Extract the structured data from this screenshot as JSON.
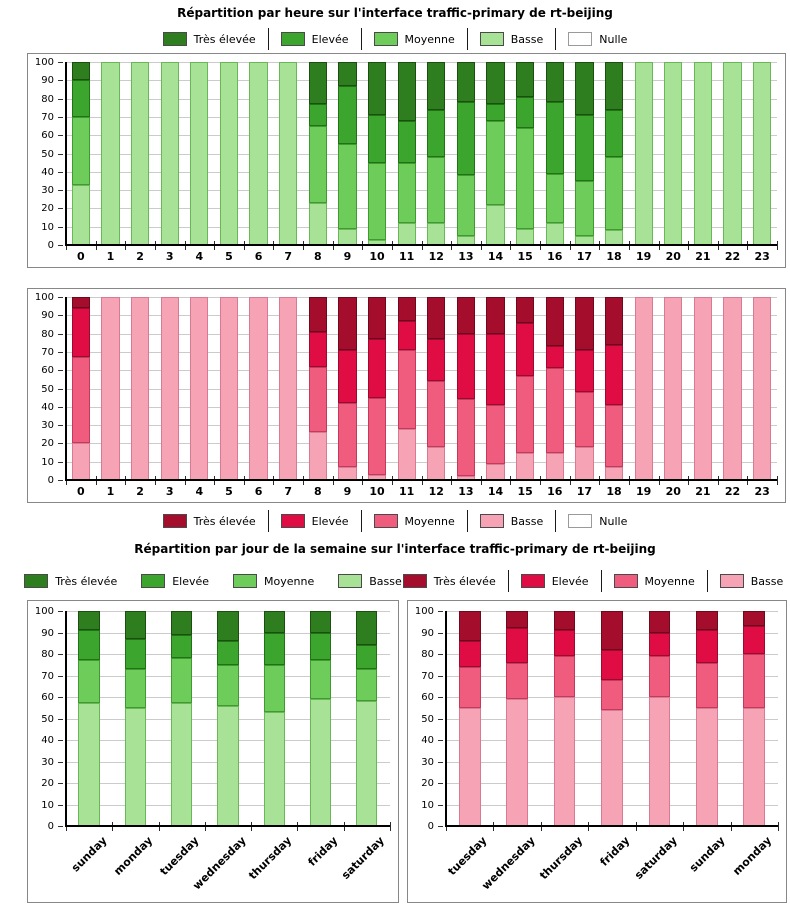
{
  "titles": {
    "hourly": "Répartition par heure sur l'interface traffic-primary de rt-beijing",
    "daily": "Répartition par jour de la semaine sur l'interface traffic-primary de rt-beijing"
  },
  "palette": {
    "green": {
      "tres_elevee": "#2e7d1e",
      "elevee": "#3ca52d",
      "moyenne": "#6ecd5a",
      "basse": "#a8e296",
      "nulle": "#ffffff"
    },
    "red": {
      "tres_elevee": "#a50d2d",
      "elevee": "#e00d45",
      "moyenne": "#f05c7e",
      "basse": "#f5a3b5",
      "nulle": "#ffffff"
    }
  },
  "legends": [
    {
      "id": "hourly-green",
      "entries": [
        {
          "label": "Très élevée",
          "color": "#2e7d1e"
        },
        {
          "label": "Elevée",
          "color": "#3ca52d"
        },
        {
          "label": "Moyenne",
          "color": "#6ecd5a"
        },
        {
          "label": "Basse",
          "color": "#a8e296"
        },
        {
          "label": "Nulle",
          "color": "#ffffff"
        }
      ]
    },
    {
      "id": "hourly-red",
      "entries": [
        {
          "label": "Très élevée",
          "color": "#a50d2d"
        },
        {
          "label": "Elevée",
          "color": "#e00d45"
        },
        {
          "label": "Moyenne",
          "color": "#f05c7e"
        },
        {
          "label": "Basse",
          "color": "#f5a3b5"
        },
        {
          "label": "Nulle",
          "color": "#ffffff"
        }
      ]
    },
    {
      "id": "daily-green",
      "entries": [
        {
          "label": "Très élevée",
          "color": "#2e7d1e"
        },
        {
          "label": "Elevée",
          "color": "#3ca52d"
        },
        {
          "label": "Moyenne",
          "color": "#6ecd5a"
        },
        {
          "label": "Basse",
          "color": "#a8e296"
        }
      ]
    },
    {
      "id": "daily-red",
      "entries": [
        {
          "label": "Très élevée",
          "color": "#a50d2d"
        },
        {
          "label": "Elevée",
          "color": "#e00d45"
        },
        {
          "label": "Moyenne",
          "color": "#f05c7e"
        },
        {
          "label": "Basse",
          "color": "#f5a3b5"
        }
      ]
    }
  ],
  "chart_data": [
    {
      "id": "hourly-green",
      "type": "bar",
      "stacked": true,
      "title": "Répartition par heure sur l'interface traffic-primary de rt-beijing",
      "ylim": [
        0,
        100
      ],
      "ytick_step": 10,
      "grid": true,
      "legend_position": "above",
      "categories": [
        "0",
        "1",
        "2",
        "3",
        "4",
        "5",
        "6",
        "7",
        "8",
        "9",
        "10",
        "11",
        "12",
        "13",
        "14",
        "15",
        "16",
        "17",
        "18",
        "19",
        "20",
        "21",
        "22",
        "23"
      ],
      "series": [
        {
          "name": "Basse",
          "color": "#a8e296",
          "edge": "#6ab757",
          "values": [
            33,
            100,
            100,
            100,
            100,
            100,
            100,
            100,
            23,
            9,
            3,
            12,
            12,
            5,
            22,
            9,
            12,
            5,
            8,
            100,
            100,
            100,
            100,
            100
          ]
        },
        {
          "name": "Moyenne",
          "color": "#6ecd5a",
          "edge": "#3f9a30",
          "values": [
            37,
            0,
            0,
            0,
            0,
            0,
            0,
            0,
            42,
            46,
            42,
            33,
            36,
            33,
            46,
            55,
            27,
            30,
            40,
            0,
            0,
            0,
            0,
            0
          ]
        },
        {
          "name": "Elevée",
          "color": "#3ca52d",
          "edge": "#1f7314",
          "values": [
            20,
            0,
            0,
            0,
            0,
            0,
            0,
            0,
            12,
            32,
            26,
            23,
            26,
            40,
            9,
            17,
            39,
            36,
            26,
            0,
            0,
            0,
            0,
            0
          ]
        },
        {
          "name": "Très élevée",
          "color": "#2e7d1e",
          "edge": "#1a4f10",
          "values": [
            10,
            0,
            0,
            0,
            0,
            0,
            0,
            0,
            23,
            13,
            29,
            32,
            26,
            22,
            23,
            19,
            22,
            29,
            26,
            0,
            0,
            0,
            0,
            0
          ]
        }
      ]
    },
    {
      "id": "hourly-red",
      "type": "bar",
      "stacked": true,
      "title": "Répartition par heure sur l'interface traffic-primary de rt-beijing",
      "ylim": [
        0,
        100
      ],
      "ytick_step": 10,
      "grid": true,
      "legend_position": "below",
      "categories": [
        "0",
        "1",
        "2",
        "3",
        "4",
        "5",
        "6",
        "7",
        "8",
        "9",
        "10",
        "11",
        "12",
        "13",
        "14",
        "15",
        "16",
        "17",
        "18",
        "19",
        "20",
        "21",
        "22",
        "23"
      ],
      "series": [
        {
          "name": "Basse",
          "color": "#f5a3b5",
          "edge": "#d87b92",
          "values": [
            20,
            100,
            100,
            100,
            100,
            100,
            100,
            100,
            26,
            7,
            3,
            28,
            18,
            2,
            9,
            15,
            15,
            18,
            7,
            100,
            100,
            100,
            100,
            100
          ]
        },
        {
          "name": "Moyenne",
          "color": "#f05c7e",
          "edge": "#c43a5c",
          "values": [
            47,
            0,
            0,
            0,
            0,
            0,
            0,
            0,
            36,
            35,
            42,
            43,
            36,
            42,
            32,
            42,
            46,
            30,
            34,
            0,
            0,
            0,
            0,
            0
          ]
        },
        {
          "name": "Elevée",
          "color": "#e00d45",
          "edge": "#9c0a30",
          "values": [
            27,
            0,
            0,
            0,
            0,
            0,
            0,
            0,
            19,
            29,
            32,
            16,
            23,
            36,
            39,
            29,
            12,
            23,
            33,
            0,
            0,
            0,
            0,
            0
          ]
        },
        {
          "name": "Très élevée",
          "color": "#a50d2d",
          "edge": "#6d081d",
          "values": [
            6,
            0,
            0,
            0,
            0,
            0,
            0,
            0,
            19,
            29,
            23,
            13,
            23,
            20,
            20,
            14,
            27,
            29,
            26,
            0,
            0,
            0,
            0,
            0
          ]
        }
      ]
    },
    {
      "id": "daily-green",
      "type": "bar",
      "stacked": true,
      "title": "Répartition par jour de la semaine sur l'interface traffic-primary de rt-beijing",
      "ylim": [
        0,
        100
      ],
      "ytick_step": 10,
      "grid": true,
      "legend_position": "above",
      "categories": [
        "sunday",
        "monday",
        "tuesday",
        "wednesday",
        "thursday",
        "friday",
        "saturday"
      ],
      "series": [
        {
          "name": "Basse",
          "color": "#a8e296",
          "edge": "#6ab757",
          "values": [
            57,
            55,
            57,
            56,
            53,
            59,
            58
          ]
        },
        {
          "name": "Moyenne",
          "color": "#6ecd5a",
          "edge": "#3f9a30",
          "values": [
            20,
            18,
            21,
            19,
            22,
            18,
            15
          ]
        },
        {
          "name": "Elevée",
          "color": "#3ca52d",
          "edge": "#1f7314",
          "values": [
            14,
            14,
            11,
            11,
            15,
            13,
            11
          ]
        },
        {
          "name": "Très élevée",
          "color": "#2e7d1e",
          "edge": "#1a4f10",
          "values": [
            9,
            13,
            11,
            14,
            10,
            10,
            16
          ]
        }
      ]
    },
    {
      "id": "daily-red",
      "type": "bar",
      "stacked": true,
      "title": "Répartition par jour de la semaine sur l'interface traffic-primary de rt-beijing",
      "ylim": [
        0,
        100
      ],
      "ytick_step": 10,
      "grid": true,
      "legend_position": "above",
      "categories": [
        "tuesday",
        "wednesday",
        "thursday",
        "friday",
        "saturday",
        "sunday",
        "monday"
      ],
      "series": [
        {
          "name": "Basse",
          "color": "#f5a3b5",
          "edge": "#d87b92",
          "values": [
            55,
            59,
            60,
            54,
            60,
            55,
            55
          ]
        },
        {
          "name": "Moyenne",
          "color": "#f05c7e",
          "edge": "#c43a5c",
          "values": [
            19,
            17,
            19,
            14,
            19,
            21,
            25
          ]
        },
        {
          "name": "Elevée",
          "color": "#e00d45",
          "edge": "#9c0a30",
          "values": [
            12,
            16,
            12,
            14,
            11,
            15,
            13
          ]
        },
        {
          "name": "Très élevée",
          "color": "#a50d2d",
          "edge": "#6d081d",
          "values": [
            14,
            8,
            9,
            18,
            10,
            9,
            7
          ]
        }
      ]
    }
  ]
}
